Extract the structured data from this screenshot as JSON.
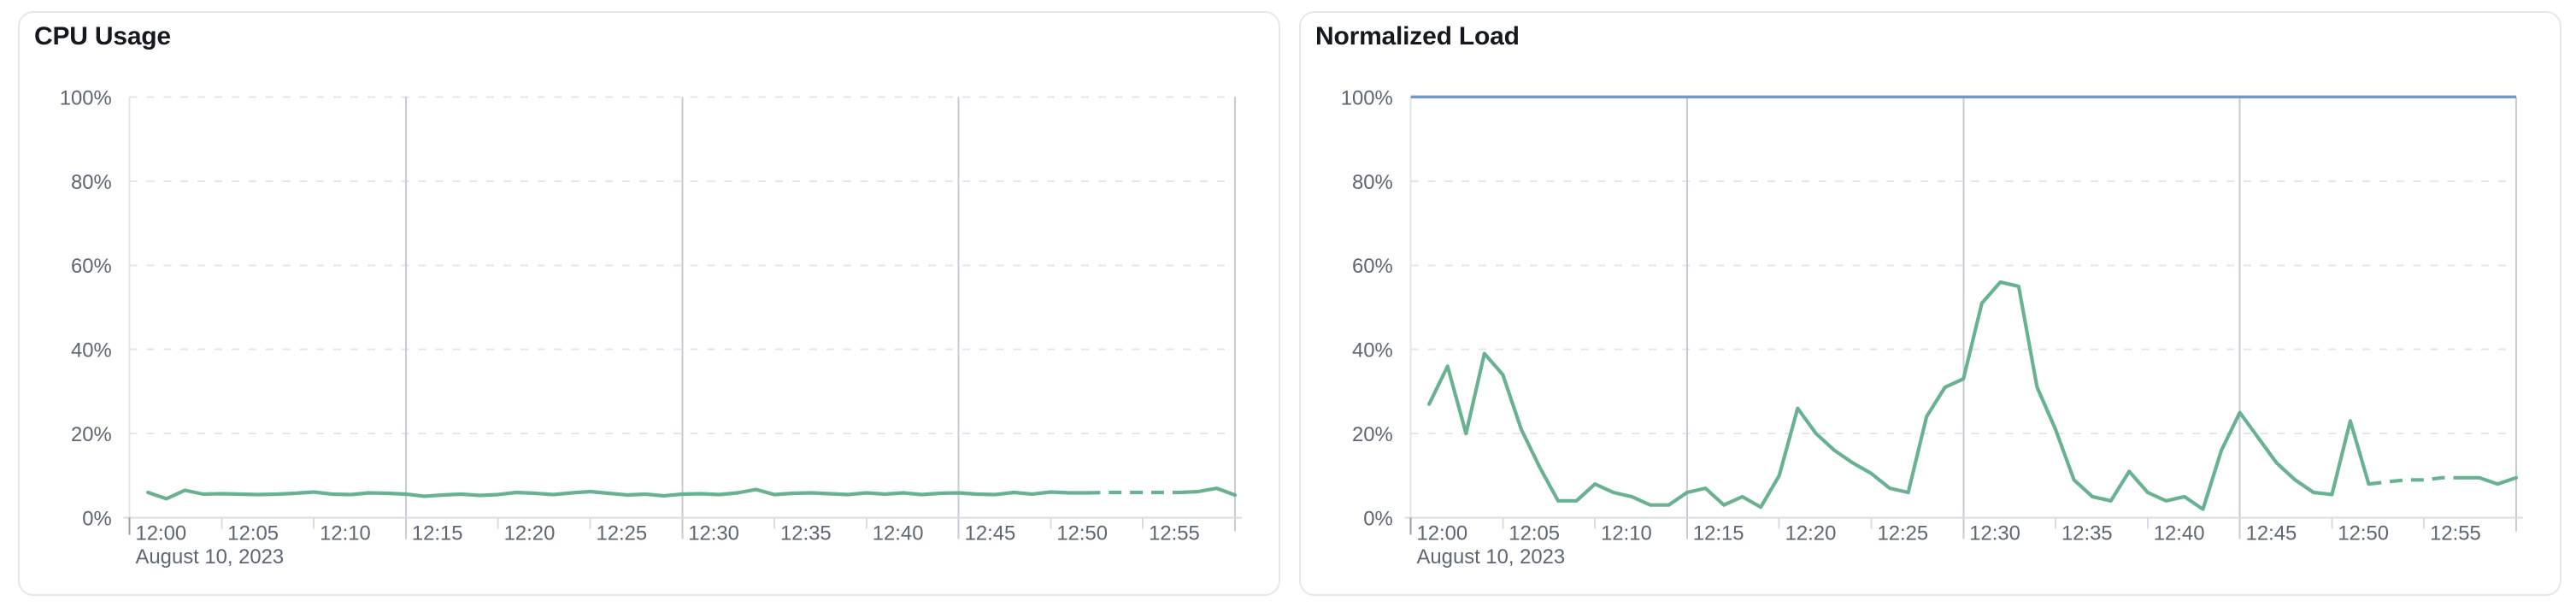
{
  "page": {
    "background": "#ffffff"
  },
  "panels": [
    {
      "title": "CPU Usage"
    },
    {
      "title": "Normalized Load"
    }
  ],
  "colors": {
    "green_line": "#69b291",
    "blue_line": "#7499c8",
    "grid_dashed": "#e3e6ef",
    "grid_major": "#c8cbd1",
    "tick_minor": "#d8dbe0",
    "tick_origin": "#9aa0a9",
    "axis_line": "#d9dce1",
    "plot_border": "#e2e5ea",
    "label_text": "#5d6674",
    "title_text": "#15181e",
    "card_border": "#e3e7ee"
  },
  "chart_data": [
    {
      "type": "line",
      "title": "CPU Usage",
      "xlabel": "",
      "ylabel": "",
      "ylim": [
        0,
        100
      ],
      "x_domain_minutes": [
        0,
        60
      ],
      "date_label": "August 10, 2023",
      "grid": "dashed-horizontal, solid vertical every 15 min",
      "legend": "none",
      "y_tick_values": [
        0,
        20,
        40,
        60,
        80,
        100
      ],
      "y_tick_labels": [
        "0%",
        "20%",
        "40%",
        "60%",
        "80%",
        "100%"
      ],
      "x_tick_minutes": [
        0,
        5,
        10,
        15,
        20,
        25,
        30,
        35,
        40,
        45,
        50,
        55
      ],
      "x_tick_labels": [
        "12:00",
        "12:05",
        "12:10",
        "12:15",
        "12:20",
        "12:25",
        "12:30",
        "12:35",
        "12:40",
        "12:45",
        "12:50",
        "12:55"
      ],
      "major_vgrid_minutes": [
        15,
        30,
        45
      ],
      "right_edge_minute": 60,
      "series": [
        {
          "name": "cpu-usage-percent",
          "color_key": "green_line",
          "start_minute": 1,
          "step_minutes": 1,
          "dashed_minute_range": [
            52,
            57
          ],
          "values": [
            6,
            4.5,
            6.5,
            5.6,
            5.7,
            5.6,
            5.5,
            5.6,
            5.8,
            6.1,
            5.6,
            5.5,
            5.9,
            5.8,
            5.6,
            5.1,
            5.4,
            5.6,
            5.3,
            5.5,
            6,
            5.8,
            5.5,
            5.9,
            6.2,
            5.8,
            5.4,
            5.6,
            5.2,
            5.6,
            5.7,
            5.5,
            5.9,
            6.7,
            5.5,
            5.8,
            5.9,
            5.7,
            5.5,
            5.9,
            5.6,
            5.9,
            5.5,
            5.8,
            5.9,
            5.6,
            5.5,
            6,
            5.6,
            6.1,
            5.9,
            5.9,
            6,
            6,
            6,
            6,
            6,
            6.2,
            7,
            5.4
          ]
        }
      ]
    },
    {
      "type": "line",
      "title": "Normalized Load",
      "xlabel": "",
      "ylabel": "",
      "ylim": [
        0,
        100
      ],
      "x_domain_minutes": [
        0,
        60
      ],
      "date_label": "August 10, 2023",
      "grid": "dashed-horizontal, solid vertical every 15 min",
      "legend": "none",
      "y_tick_values": [
        0,
        20,
        40,
        60,
        80,
        100
      ],
      "y_tick_labels": [
        "0%",
        "20%",
        "40%",
        "60%",
        "80%",
        "100%"
      ],
      "x_tick_minutes": [
        0,
        5,
        10,
        15,
        20,
        25,
        30,
        35,
        40,
        45,
        50,
        55
      ],
      "x_tick_labels": [
        "12:00",
        "12:05",
        "12:10",
        "12:15",
        "12:20",
        "12:25",
        "12:30",
        "12:35",
        "12:40",
        "12:45",
        "12:50",
        "12:55"
      ],
      "major_vgrid_minutes": [
        15,
        30,
        45
      ],
      "right_edge_minute": 60,
      "series": [
        {
          "name": "normalized-load-percent",
          "color_key": "green_line",
          "start_minute": 1,
          "step_minutes": 1,
          "dashed_minute_range": [
            52,
            57
          ],
          "values": [
            27,
            36,
            20,
            39,
            34,
            21,
            12,
            4,
            4,
            8,
            6,
            5,
            3,
            3,
            6,
            7,
            3,
            5,
            2.5,
            10,
            26,
            20,
            16,
            13,
            10.5,
            7,
            6,
            24,
            31,
            33,
            51,
            56,
            55,
            31,
            21,
            9,
            5,
            4,
            11,
            6,
            4,
            5,
            2,
            16,
            25,
            19,
            13,
            9,
            6,
            5.5,
            23,
            8,
            8.5,
            9,
            9,
            9.5,
            9.5,
            9.5,
            8,
            9.5
          ]
        },
        {
          "name": "load-limit",
          "color_key": "blue_line",
          "constant_value": 100
        }
      ]
    }
  ]
}
